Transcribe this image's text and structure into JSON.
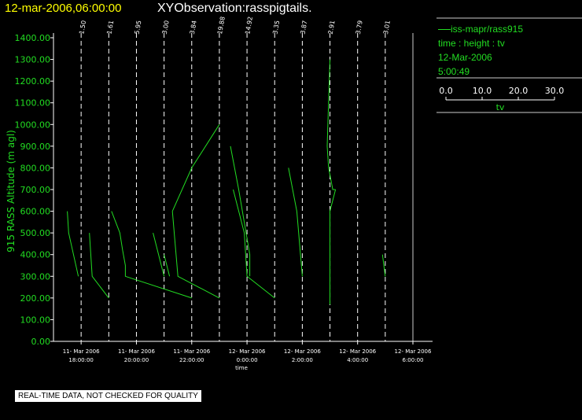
{
  "header": {
    "date": "12-mar-2006,06:00:00",
    "title": "XYObservation:rasspigtails."
  },
  "legend": {
    "line_name": "iss-mapr/rass915",
    "variables": "time : height : tv",
    "date": "12-Mar-2006",
    "time": "5:00:49",
    "scale_ticks": [
      "0.0",
      "10.0",
      "20.0",
      "30.0"
    ],
    "scale_label": "tv"
  },
  "note": "REAL-TIME DATA, NOT CHECKED FOR QUALITY",
  "colors": {
    "series": "#22dd22",
    "axis": "#ffffff",
    "ylabel": "#22dd22"
  },
  "chart_data": {
    "type": "line",
    "xlabel": "time",
    "ylabel": "915 RASS Altitude (m agl)",
    "ylim": [
      0,
      1400
    ],
    "xlim_hours": [
      17,
      30
    ],
    "y_ticks": [
      "0.00",
      "100.00",
      "200.00",
      "300.00",
      "400.00",
      "500.00",
      "600.00",
      "700.00",
      "800.00",
      "900.00",
      "1000.00",
      "1100.00",
      "1200.00",
      "1300.00",
      "1400.00"
    ],
    "x_ticks": [
      {
        "h": 18,
        "l1": "11- Mar 2006",
        "l2": "18:00:00"
      },
      {
        "h": 20,
        "l1": "11- Mar 2006",
        "l2": "20:00:00"
      },
      {
        "h": 22,
        "l1": "11- Mar 2006",
        "l2": "22:00:00"
      },
      {
        "h": 24,
        "l1": "12- Mar 2006",
        "l2": "0:00:00"
      },
      {
        "h": 26,
        "l1": "12- Mar 2006",
        "l2": "2:00:00"
      },
      {
        "h": 28,
        "l1": "12- Mar 2006",
        "l2": "4:00:00"
      },
      {
        "h": 30,
        "l1": "12- Mar 2006",
        "l2": "6:00:00"
      }
    ],
    "profiles": [
      {
        "h": 18,
        "label": "1.50",
        "points": [
          [
            17.5,
            600
          ],
          [
            17.55,
            500
          ],
          [
            17.9,
            300
          ]
        ]
      },
      {
        "h": 19,
        "label": "1.61",
        "points": [
          [
            18.3,
            500
          ],
          [
            18.4,
            300
          ],
          [
            19.0,
            200
          ]
        ]
      },
      {
        "h": 20,
        "label": "5.95",
        "points": [
          [
            19.1,
            600
          ],
          [
            19.4,
            500
          ],
          [
            19.5,
            420
          ],
          [
            19.6,
            350
          ],
          [
            19.6,
            300
          ],
          [
            22.0,
            200
          ]
        ]
      },
      {
        "h": 21,
        "label": "3.00",
        "points": [
          [
            20.6,
            500
          ],
          [
            20.7,
            450
          ],
          [
            20.9,
            350
          ],
          [
            21.0,
            300
          ]
        ]
      },
      {
        "h": 22,
        "label": "3.84",
        "points": [
          [
            21.0,
            400
          ],
          [
            21.2,
            300
          ]
        ]
      },
      {
        "h": 23,
        "label": "19.88",
        "points": [
          [
            21.3,
            600
          ],
          [
            22.0,
            800
          ],
          [
            23.0,
            1000
          ]
        ]
      },
      {
        "h": 23.5,
        "label": "",
        "points": [
          [
            21.3,
            600
          ],
          [
            21.5,
            300
          ],
          [
            23.0,
            200
          ]
        ]
      },
      {
        "h": 24,
        "label": "14.92",
        "points": [
          [
            23.4,
            900
          ],
          [
            23.7,
            700
          ],
          [
            24.1,
            400
          ],
          [
            24.1,
            300
          ]
        ]
      },
      {
        "h": 25,
        "label": "3.35",
        "points": [
          [
            23.5,
            700
          ],
          [
            23.9,
            500
          ],
          [
            24.0,
            300
          ],
          [
            25.0,
            200
          ]
        ]
      },
      {
        "h": 26,
        "label": "3.87",
        "points": [
          [
            25.5,
            800
          ],
          [
            25.8,
            600
          ],
          [
            26.0,
            300
          ]
        ]
      },
      {
        "h": 27,
        "label": "2.91",
        "points": [
          [
            27.0,
            1300
          ],
          [
            26.9,
            900
          ],
          [
            26.95,
            800
          ],
          [
            27.1,
            700
          ],
          [
            27.2,
            700
          ]
        ]
      },
      {
        "h": 28,
        "label": "3.79",
        "points": [
          [
            27.2,
            700
          ],
          [
            27.0,
            600
          ],
          [
            27.0,
            400
          ],
          [
            27.0,
            170
          ]
        ]
      },
      {
        "h": 29,
        "label": "3.01",
        "points": [
          [
            28.9,
            400
          ],
          [
            29.0,
            300
          ]
        ]
      }
    ]
  }
}
